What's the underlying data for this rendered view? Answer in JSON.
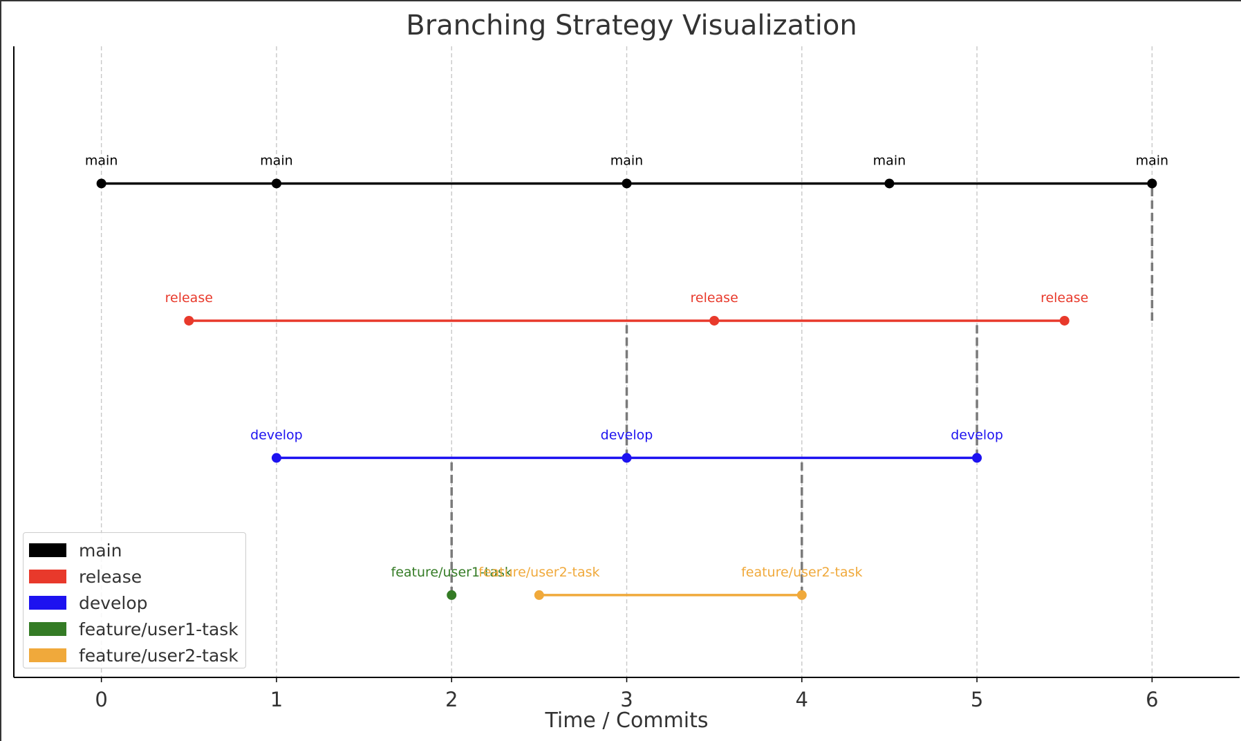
{
  "chart_data": {
    "type": "line",
    "title": "Branching Strategy Visualization",
    "xlabel": "Time / Commits",
    "ylabel": "",
    "xlim": [
      -0.5,
      6.5
    ],
    "ylim": [
      0.4,
      5.0
    ],
    "x_ticks": [
      "0",
      "1",
      "2",
      "3",
      "4",
      "5",
      "6"
    ],
    "x_tick_values": [
      0,
      1,
      2,
      3,
      4,
      5,
      6
    ],
    "grid": "vertical dashed at x ticks",
    "legend_position": "lower-left",
    "series": [
      {
        "name": "main",
        "color": "#000000",
        "level": 4,
        "x": [
          0,
          1,
          3,
          4.5,
          6
        ],
        "labels": [
          "main",
          "main",
          "main",
          "main",
          "main"
        ]
      },
      {
        "name": "release",
        "color": "#e8392b",
        "level": 3,
        "x": [
          0.5,
          3.5,
          5.5
        ],
        "labels": [
          "release",
          "release",
          "release"
        ]
      },
      {
        "name": "develop",
        "color": "#1d12f0",
        "level": 2,
        "x": [
          1,
          3,
          5
        ],
        "labels": [
          "develop",
          "develop",
          "develop"
        ]
      },
      {
        "name": "feature/user1-task",
        "color": "#347b25",
        "level": 1,
        "x": [
          2
        ],
        "labels": [
          "feature/user1-task"
        ]
      },
      {
        "name": "feature/user2-task",
        "color": "#f0a93b",
        "level": 1,
        "x": [
          2.5,
          4
        ],
        "labels": [
          "feature/user2-task",
          "feature/user2-task"
        ]
      }
    ],
    "merges": [
      {
        "x": 2,
        "from_level": 1,
        "to_level": 2
      },
      {
        "x": 3,
        "from_level": 2,
        "to_level": 3
      },
      {
        "x": 4,
        "from_level": 1,
        "to_level": 2
      },
      {
        "x": 5,
        "from_level": 2,
        "to_level": 3
      },
      {
        "x": 6,
        "from_level": 3,
        "to_level": 4
      }
    ]
  },
  "legend": {
    "items": [
      {
        "label": "main",
        "color": "#000000"
      },
      {
        "label": "release",
        "color": "#e8392b"
      },
      {
        "label": "develop",
        "color": "#1d12f0"
      },
      {
        "label": "feature/user1-task",
        "color": "#347b25"
      },
      {
        "label": "feature/user2-task",
        "color": "#f0a93b"
      }
    ]
  }
}
